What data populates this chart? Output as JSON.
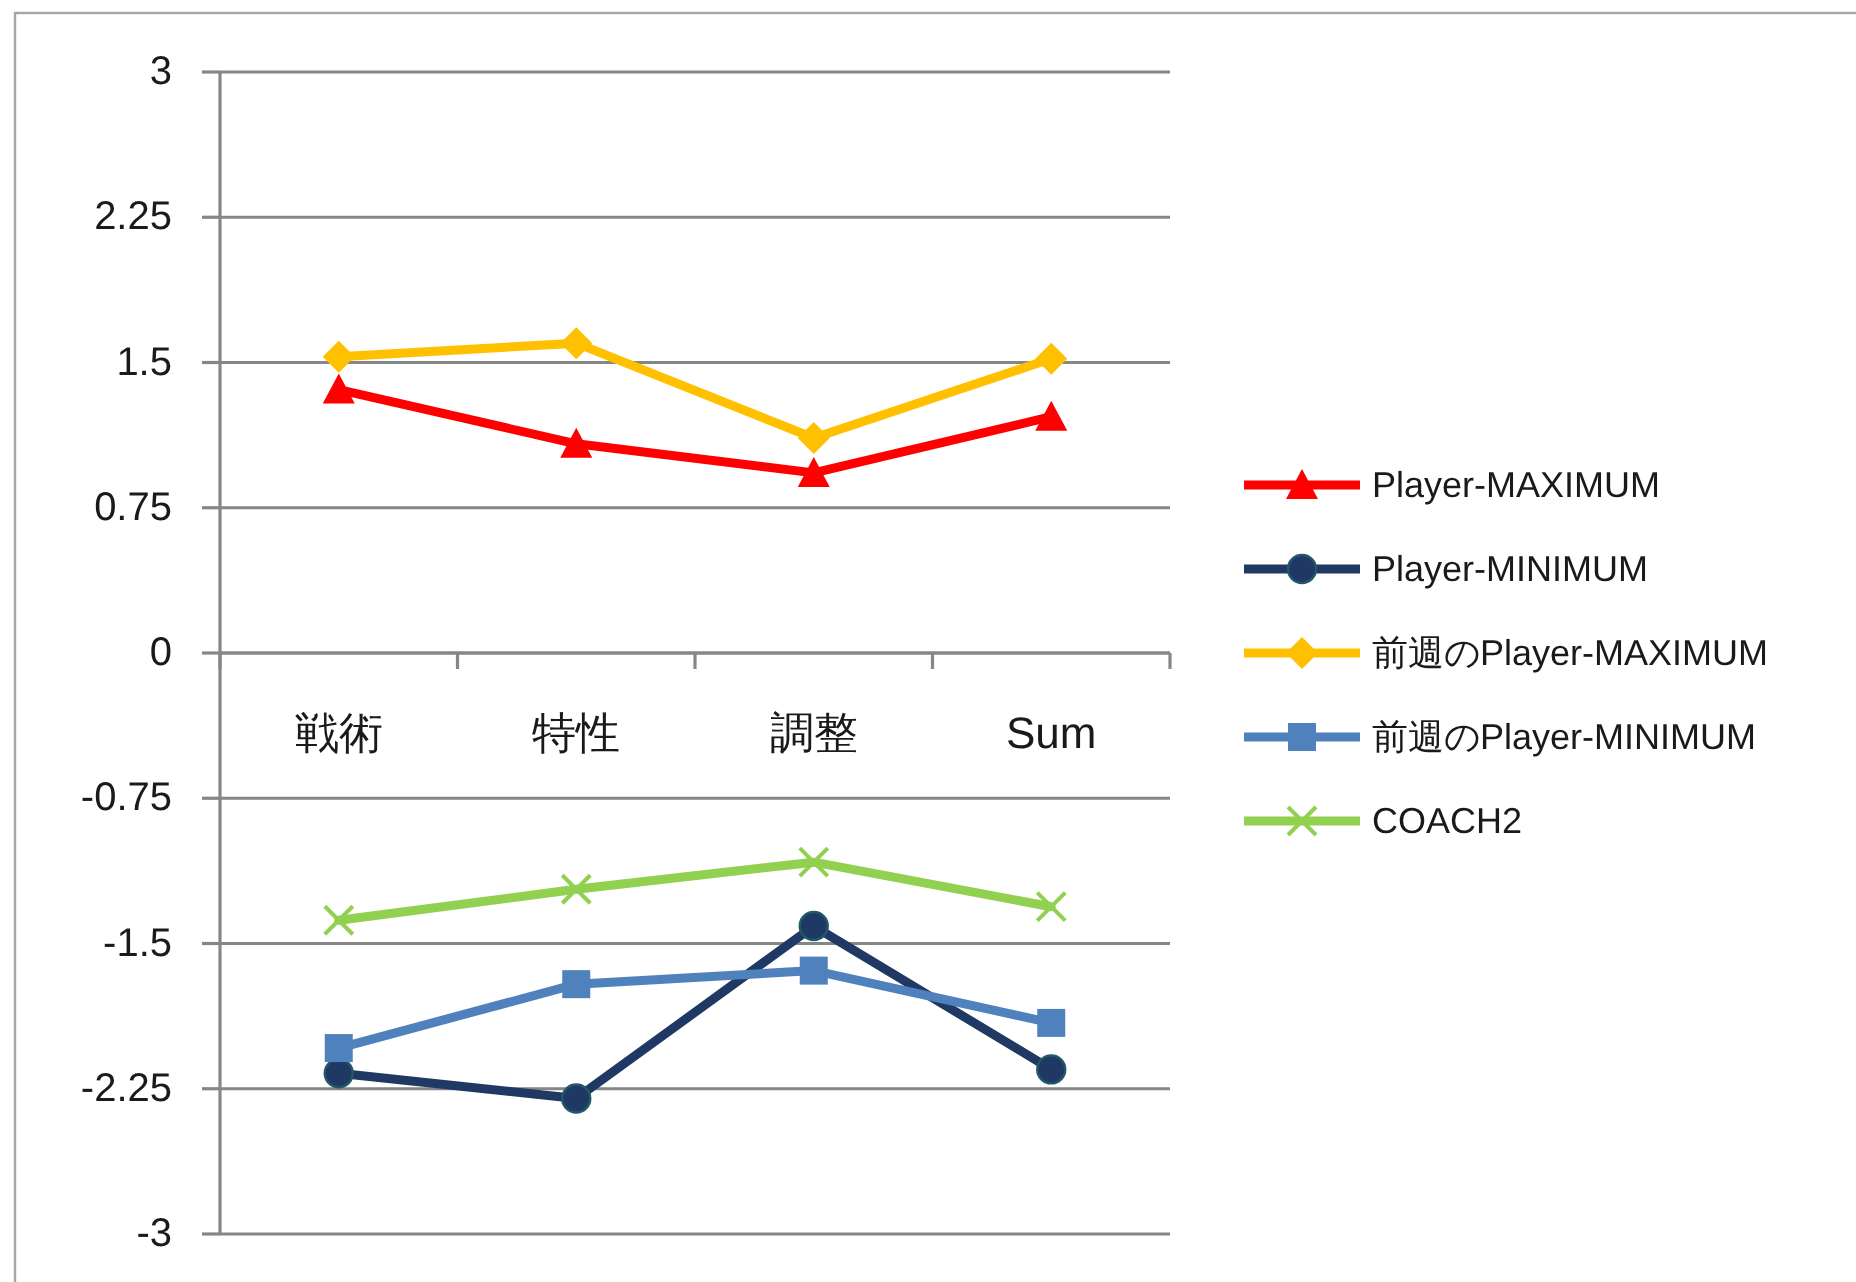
{
  "chart_data": {
    "type": "line",
    "categories": [
      "戦術",
      "特性",
      "調整",
      "Sum"
    ],
    "ylim": [
      -3,
      3
    ],
    "yticks": [
      -3,
      -2.25,
      -1.5,
      -0.75,
      0,
      0.75,
      1.5,
      2.25,
      3
    ],
    "grid": "y",
    "legend": "right",
    "series": [
      {
        "name": "Player-MAXIMUM",
        "color": "#ff0000",
        "marker": "triangle",
        "values": [
          1.36,
          1.08,
          0.93,
          1.22
        ]
      },
      {
        "name": "Player-MINIMUM",
        "color": "#1f3864",
        "marker": "circle",
        "values": [
          -2.17,
          -2.3,
          -1.41,
          -2.15
        ]
      },
      {
        "name": "前週のPlayer-MAXIMUM",
        "color": "#ffc000",
        "marker": "diamond",
        "values": [
          1.53,
          1.6,
          1.11,
          1.52
        ]
      },
      {
        "name": "前週のPlayer-MINIMUM",
        "color": "#4f81bd",
        "marker": "square",
        "values": [
          -2.04,
          -1.71,
          -1.64,
          -1.91
        ]
      },
      {
        "name": "COACH2",
        "color": "#92d050",
        "marker": "cross",
        "values": [
          -1.38,
          -1.22,
          -1.08,
          -1.31
        ]
      }
    ]
  }
}
